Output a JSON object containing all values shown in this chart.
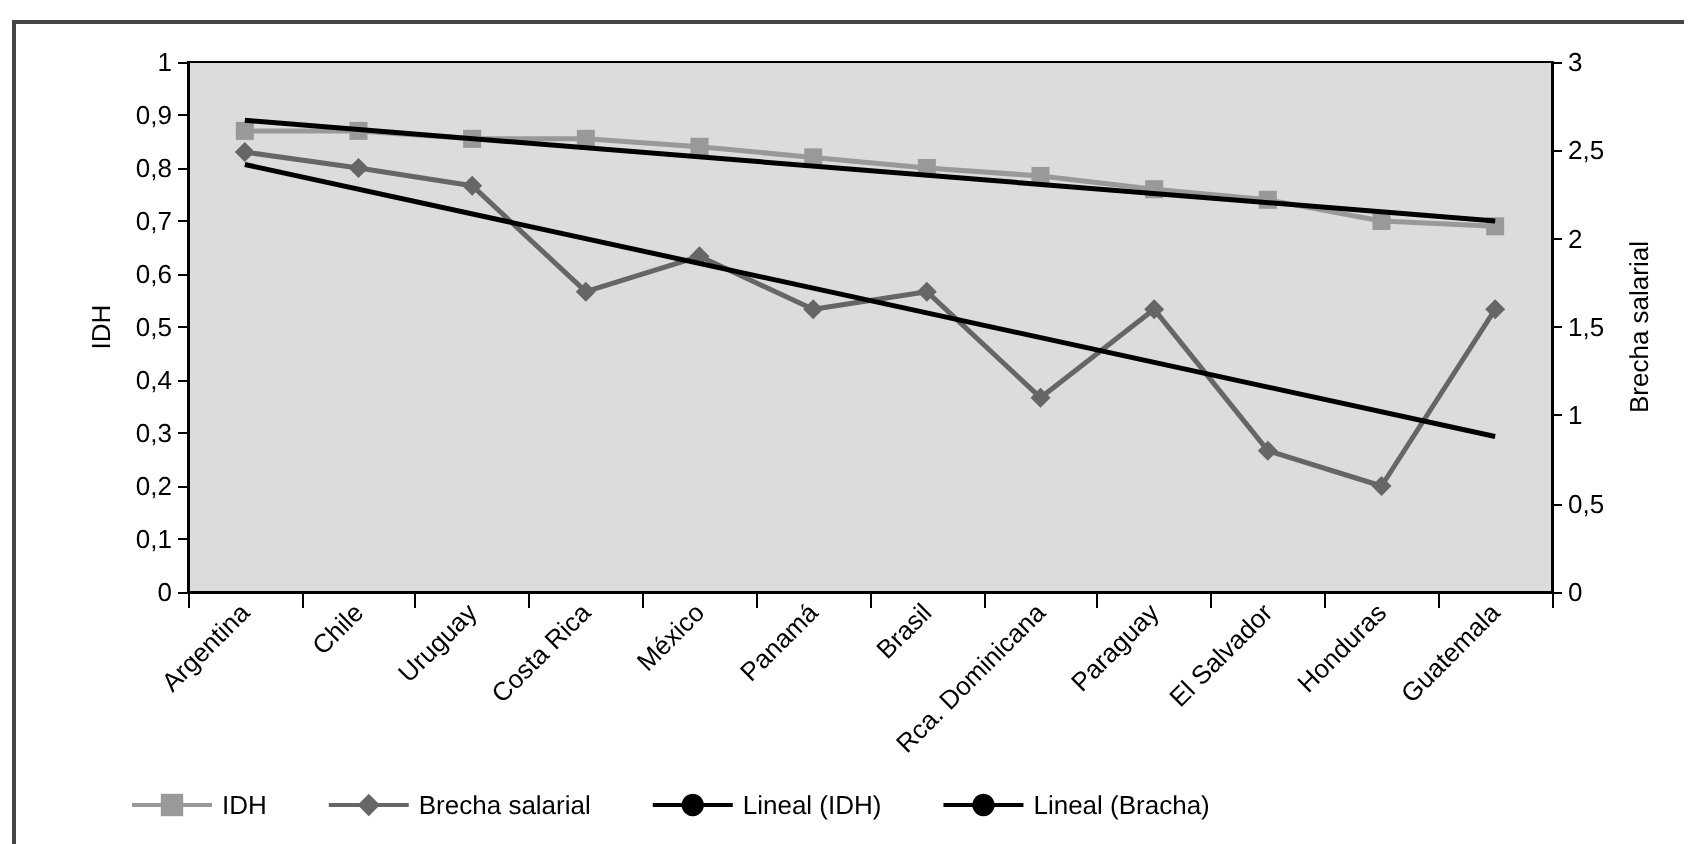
{
  "chart_data": {
    "type": "line",
    "xlabel": null,
    "ylabel": "IDH",
    "y2label": "Brecha salarial",
    "categories": [
      "Argentina",
      "Chile",
      "Uruguay",
      "Costa Rica",
      "México",
      "Panamá",
      "Brasil",
      "Rca. Dominicana",
      "Paraguay",
      "El Salvador",
      "Honduras",
      "Guatemala"
    ],
    "series": [
      {
        "name": "IDH",
        "color": "#999999",
        "marker": "square",
        "values": [
          0.87,
          0.87,
          0.855,
          0.855,
          0.84,
          0.82,
          0.8,
          0.785,
          0.76,
          0.74,
          0.7,
          0.69
        ]
      },
      {
        "name": "Brecha salarial",
        "color": "#666666",
        "marker": "diamond",
        "axis": "y2",
        "values": [
          2.49,
          2.4,
          2.3,
          1.7,
          1.9,
          1.6,
          1.7,
          1.1,
          1.6,
          0.8,
          0.6,
          1.6
        ]
      },
      {
        "name": "Lineal (IDH)",
        "color": "#000000",
        "marker": "none",
        "x": [
          "Argentina",
          "Guatemala"
        ],
        "values": [
          0.89,
          0.7
        ]
      },
      {
        "name": "Lineal (Bracha)",
        "color": "#000000",
        "marker": "none",
        "axis": "y2",
        "x": [
          "Argentina",
          "Guatemala"
        ],
        "values": [
          2.42,
          0.88
        ]
      }
    ],
    "ylim": [
      0,
      1
    ],
    "yticks": [
      0,
      {
        "value": 0.1,
        "label": "0,1"
      },
      {
        "value": 0.2,
        "label": "0,2"
      },
      {
        "value": 0.3,
        "label": "0,3"
      },
      {
        "value": 0.4,
        "label": "0,4"
      },
      {
        "value": 0.5,
        "label": "0,5"
      },
      {
        "value": 0.6,
        "label": "0,6"
      },
      {
        "value": 0.7,
        "label": "0,7"
      },
      {
        "value": 0.8,
        "label": "0,8"
      },
      {
        "value": 0.9,
        "label": "0,9"
      },
      1
    ],
    "y2lim": [
      0,
      3
    ],
    "y2ticks": [
      0,
      {
        "value": 0.5,
        "label": "0,5"
      },
      1,
      {
        "value": 1.5,
        "label": "1,5"
      },
      2,
      {
        "value": 2.5,
        "label": "2,5"
      },
      3
    ],
    "grid": false,
    "legend": "bottom",
    "line_style": "solid"
  }
}
